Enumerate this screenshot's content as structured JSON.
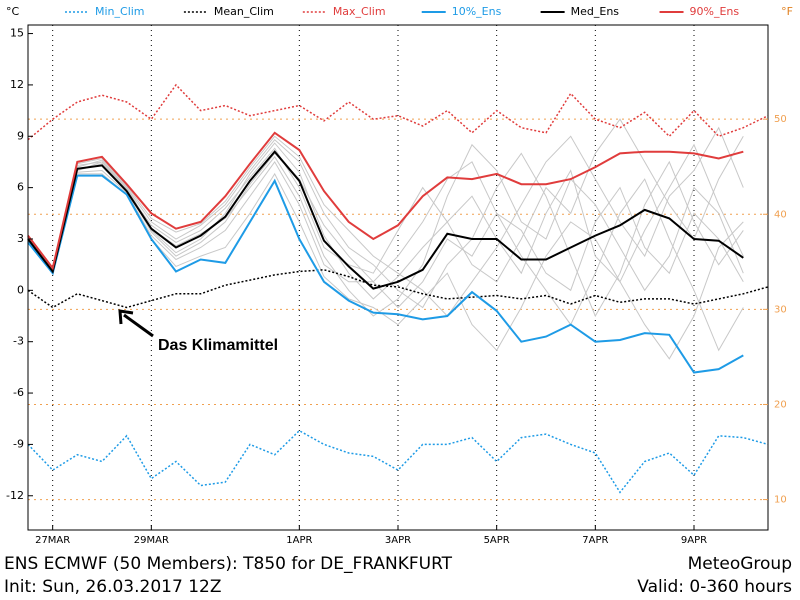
{
  "chart_data": {
    "type": "line",
    "title": "ENS ECMWF (50 Members): T850 for DE_FRANKFURT",
    "subtitle": "Init: Sun, 26.03.2017 12Z",
    "source": "MeteoGroup",
    "valid": "Valid: 0-360 hours",
    "ylabel": "°C",
    "y2label": "°F",
    "annotation": "Das Klimamittel",
    "x": [
      0,
      12,
      24,
      36,
      48,
      60,
      72,
      84,
      96,
      108,
      120,
      132,
      144,
      156,
      168,
      180,
      192,
      204,
      216,
      228,
      240,
      252,
      264,
      276,
      288,
      300,
      312,
      324,
      336,
      348,
      360
    ],
    "xlim": [
      0,
      360
    ],
    "xticks": [
      {
        "value": 12,
        "label": "27MAR"
      },
      {
        "value": 60,
        "label": "29MAR"
      },
      {
        "value": 132,
        "label": "1APR"
      },
      {
        "value": 180,
        "label": "3APR"
      },
      {
        "value": 228,
        "label": "5APR"
      },
      {
        "value": 276,
        "label": "7APR"
      },
      {
        "value": 324,
        "label": "9APR"
      }
    ],
    "ylim": [
      -14,
      15.5
    ],
    "yticks": [
      -12,
      -9,
      -6,
      -3,
      0,
      3,
      6,
      9,
      12,
      15
    ],
    "y2lim": [
      6.8,
      59.9
    ],
    "y2ticks": [
      10,
      20,
      30,
      40,
      50
    ],
    "y2_grid_color": "#f0a050",
    "x_grid": true,
    "members_color": "#c8c8c8",
    "members": [
      [
        3.1,
        1.2,
        7.0,
        7.4,
        5.9,
        3.5,
        2.2,
        3.0,
        4.5,
        6.8,
        8.6,
        6.9,
        3.2,
        1.0,
        -0.5,
        0.8,
        2.5,
        4.0,
        5.5,
        3.0,
        1.0,
        4.5,
        7.0,
        2.0,
        0.5,
        3.5,
        6.0,
        8.5,
        5.0,
        2.0,
        null
      ],
      [
        3.0,
        1.0,
        7.2,
        7.6,
        6.0,
        4.0,
        3.0,
        3.8,
        5.0,
        7.0,
        8.8,
        7.5,
        4.5,
        2.5,
        1.5,
        0.0,
        -1.0,
        1.5,
        3.0,
        6.0,
        8.0,
        5.5,
        2.0,
        -1.5,
        1.0,
        5.0,
        7.5,
        4.0,
        1.5,
        3.5,
        null
      ],
      [
        2.9,
        1.1,
        6.9,
        7.0,
        5.7,
        3.2,
        1.8,
        2.5,
        3.5,
        5.5,
        7.5,
        5.0,
        1.5,
        0.5,
        0.5,
        2.0,
        4.0,
        6.5,
        7.5,
        4.5,
        2.0,
        0.0,
        -2.0,
        1.0,
        4.5,
        6.5,
        3.0,
        0.0,
        -3.5,
        -1.0,
        null
      ],
      [
        3.2,
        1.3,
        7.4,
        7.7,
        6.1,
        4.2,
        3.4,
        3.9,
        5.2,
        7.2,
        9.0,
        7.8,
        5.0,
        3.5,
        2.0,
        1.0,
        0.0,
        -1.5,
        0.5,
        2.5,
        5.0,
        7.5,
        9.0,
        6.5,
        4.0,
        2.0,
        5.5,
        7.0,
        9.5,
        6.0,
        null
      ],
      [
        2.8,
        1.0,
        6.8,
        6.8,
        5.6,
        3.0,
        1.4,
        2.0,
        2.5,
        4.5,
        6.8,
        4.0,
        0.8,
        -0.5,
        -1.0,
        -2.0,
        -0.5,
        1.0,
        -2.0,
        -3.5,
        -1.0,
        2.0,
        4.0,
        3.0,
        0.5,
        -2.0,
        -4.0,
        -1.5,
        2.5,
        4.0,
        null
      ],
      [
        3.0,
        1.2,
        7.1,
        7.3,
        5.8,
        3.8,
        2.8,
        3.5,
        4.8,
        6.6,
        8.3,
        6.0,
        2.5,
        1.5,
        1.0,
        3.5,
        6.0,
        4.0,
        1.5,
        0.5,
        3.0,
        6.0,
        4.5,
        8.0,
        10.0,
        7.5,
        5.0,
        3.0,
        6.5,
        9.0,
        null
      ],
      [
        3.1,
        1.1,
        7.0,
        7.5,
        5.9,
        3.4,
        2.0,
        2.8,
        4.0,
        6.2,
        8.0,
        6.5,
        3.8,
        2.0,
        0.5,
        -1.0,
        0.5,
        3.0,
        2.0,
        4.5,
        3.5,
        1.0,
        0.0,
        4.0,
        6.0,
        2.5,
        1.0,
        4.5,
        3.0,
        0.5,
        null
      ],
      [
        3.0,
        1.0,
        7.3,
        7.5,
        6.0,
        3.6,
        2.6,
        3.3,
        4.2,
        6.0,
        7.8,
        5.5,
        2.0,
        0.0,
        -1.5,
        -0.5,
        1.5,
        5.5,
        8.5,
        7.0,
        4.0,
        3.0,
        6.5,
        5.0,
        2.5,
        0.0,
        2.0,
        6.0,
        4.5,
        1.0,
        null
      ]
    ],
    "series": [
      {
        "name": "Min_Clim",
        "color": "#1e9be6",
        "style": "dotted",
        "values": [
          -9.0,
          -10.5,
          -9.6,
          -10.0,
          -8.5,
          -11.0,
          -10.0,
          -11.4,
          -11.2,
          -9.0,
          -9.6,
          -8.2,
          -9.0,
          -9.5,
          -9.7,
          -10.5,
          -9.0,
          -9.0,
          -8.6,
          -10.0,
          -8.6,
          -8.4,
          -9.0,
          -9.5,
          -11.8,
          -10.0,
          -9.5,
          -10.8,
          -8.5,
          -8.6,
          -9.0
        ]
      },
      {
        "name": "Mean_Clim",
        "color": "#000000",
        "style": "dotted",
        "values": [
          0.0,
          -1.0,
          -0.2,
          -0.6,
          -1.0,
          -0.6,
          -0.2,
          -0.2,
          0.3,
          0.6,
          0.9,
          1.1,
          1.2,
          0.8,
          0.3,
          0.2,
          -0.2,
          -0.5,
          -0.4,
          -0.3,
          -0.5,
          -0.3,
          -0.8,
          -0.3,
          -0.7,
          -0.5,
          -0.5,
          -0.8,
          -0.5,
          -0.2,
          0.2
        ]
      },
      {
        "name": "Max_Clim",
        "color": "#e03c3c",
        "style": "dotted",
        "values": [
          8.8,
          10.0,
          11.0,
          11.4,
          11.0,
          10.0,
          12.0,
          10.5,
          10.8,
          10.2,
          10.5,
          10.8,
          9.9,
          11.0,
          10.0,
          10.2,
          9.6,
          10.5,
          9.2,
          10.5,
          9.5,
          9.2,
          11.5,
          10.0,
          9.5,
          10.4,
          9.0,
          10.5,
          9.0,
          9.5,
          10.2
        ]
      },
      {
        "name": "10%_Ens",
        "color": "#1e9be6",
        "style": "solid",
        "values": [
          2.8,
          1.0,
          6.7,
          6.7,
          5.6,
          3.0,
          1.1,
          1.8,
          1.6,
          4.0,
          6.4,
          3.0,
          0.5,
          -0.6,
          -1.3,
          -1.4,
          -1.7,
          -1.5,
          -0.1,
          -1.2,
          -3.0,
          -2.7,
          -2.0,
          -3.0,
          -2.9,
          -2.5,
          -2.6,
          -4.8,
          -4.6,
          -3.8,
          null
        ]
      },
      {
        "name": "Med_Ens",
        "color": "#000000",
        "style": "solid",
        "values": [
          3.0,
          1.1,
          7.1,
          7.3,
          5.8,
          3.6,
          2.5,
          3.2,
          4.3,
          6.4,
          8.1,
          6.4,
          2.9,
          1.4,
          0.1,
          0.5,
          1.2,
          3.3,
          3.0,
          3.0,
          1.8,
          1.8,
          2.5,
          3.2,
          3.8,
          4.7,
          4.2,
          3.0,
          2.9,
          1.9,
          null
        ]
      },
      {
        "name": "90%_Ens",
        "color": "#e03c3c",
        "style": "solid",
        "values": [
          3.2,
          1.3,
          7.5,
          7.8,
          6.2,
          4.5,
          3.6,
          4.0,
          5.5,
          7.4,
          9.2,
          8.2,
          5.8,
          4.0,
          3.0,
          3.8,
          5.5,
          6.6,
          6.5,
          6.8,
          6.2,
          6.2,
          6.5,
          7.2,
          8.0,
          8.1,
          8.1,
          8.0,
          7.7,
          8.1,
          null
        ]
      }
    ]
  }
}
